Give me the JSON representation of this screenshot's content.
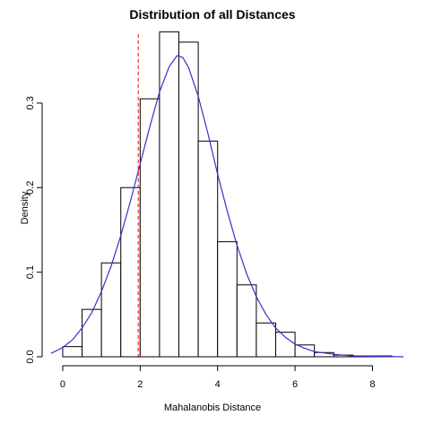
{
  "chart_data": {
    "type": "histogram",
    "title": "Distribution of all Distances",
    "xlabel": "Mahalanobis Distance",
    "ylabel": "Density",
    "xlim": [
      -0.3,
      8.8
    ],
    "ylim": [
      0,
      0.39
    ],
    "x_ticks": [
      0,
      2,
      4,
      6,
      8
    ],
    "y_ticks": [
      0.0,
      0.1,
      0.2,
      0.3
    ],
    "y_tick_labels": [
      "0.0",
      "0.1",
      "0.2",
      "0.3"
    ],
    "bins": [
      {
        "x0": 0.0,
        "x1": 0.5,
        "density": 0.012
      },
      {
        "x0": 0.5,
        "x1": 1.0,
        "density": 0.056
      },
      {
        "x0": 1.0,
        "x1": 1.5,
        "density": 0.111
      },
      {
        "x0": 1.5,
        "x1": 2.0,
        "density": 0.2
      },
      {
        "x0": 2.0,
        "x1": 2.5,
        "density": 0.305
      },
      {
        "x0": 2.5,
        "x1": 3.0,
        "density": 0.384
      },
      {
        "x0": 3.0,
        "x1": 3.5,
        "density": 0.372
      },
      {
        "x0": 3.5,
        "x1": 4.0,
        "density": 0.255
      },
      {
        "x0": 4.0,
        "x1": 4.5,
        "density": 0.136
      },
      {
        "x0": 4.5,
        "x1": 5.0,
        "density": 0.085
      },
      {
        "x0": 5.0,
        "x1": 5.5,
        "density": 0.04
      },
      {
        "x0": 5.5,
        "x1": 6.0,
        "density": 0.029
      },
      {
        "x0": 6.0,
        "x1": 6.5,
        "density": 0.014
      },
      {
        "x0": 6.5,
        "x1": 7.0,
        "density": 0.005
      },
      {
        "x0": 7.0,
        "x1": 7.5,
        "density": 0.002
      },
      {
        "x0": 7.5,
        "x1": 8.0,
        "density": 0.001
      },
      {
        "x0": 8.0,
        "x1": 8.5,
        "density": 0.001
      }
    ],
    "density_curve": {
      "color": "#3333cc",
      "points": [
        [
          -0.3,
          0.004
        ],
        [
          0.0,
          0.011
        ],
        [
          0.25,
          0.02
        ],
        [
          0.5,
          0.034
        ],
        [
          0.75,
          0.052
        ],
        [
          1.0,
          0.077
        ],
        [
          1.25,
          0.107
        ],
        [
          1.5,
          0.143
        ],
        [
          1.75,
          0.184
        ],
        [
          2.0,
          0.228
        ],
        [
          2.25,
          0.272
        ],
        [
          2.5,
          0.313
        ],
        [
          2.75,
          0.343
        ],
        [
          2.95,
          0.356
        ],
        [
          3.1,
          0.354
        ],
        [
          3.25,
          0.342
        ],
        [
          3.5,
          0.308
        ],
        [
          3.75,
          0.264
        ],
        [
          4.0,
          0.216
        ],
        [
          4.25,
          0.172
        ],
        [
          4.5,
          0.132
        ],
        [
          4.75,
          0.098
        ],
        [
          5.0,
          0.071
        ],
        [
          5.25,
          0.05
        ],
        [
          5.5,
          0.034
        ],
        [
          5.75,
          0.023
        ],
        [
          6.0,
          0.015
        ],
        [
          6.25,
          0.01
        ],
        [
          6.5,
          0.006
        ],
        [
          7.0,
          0.003
        ],
        [
          7.5,
          0.001
        ],
        [
          8.0,
          0.0005
        ],
        [
          8.8,
          0.0
        ]
      ]
    },
    "reference_line": {
      "x": 1.95,
      "color": "#ff0000",
      "style": "dashed"
    },
    "grid": false,
    "bar_fill": "#ffffff",
    "bar_stroke": "#000000"
  }
}
